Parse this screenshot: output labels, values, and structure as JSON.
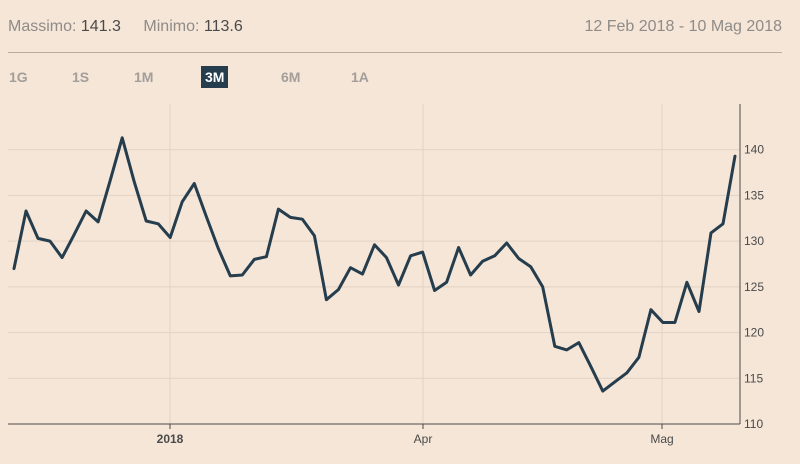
{
  "header": {
    "max_label": "Massimo:",
    "max_value": "141.3",
    "min_label": "Minimo:",
    "min_value": "113.6",
    "date_range": "12 Feb 2018 - 10 Mag 2018"
  },
  "tabs": [
    {
      "label": "1G",
      "active": false
    },
    {
      "label": "1S",
      "active": false
    },
    {
      "label": "1M",
      "active": false
    },
    {
      "label": "3M",
      "active": true
    },
    {
      "label": "6M",
      "active": false
    },
    {
      "label": "1A",
      "active": false
    }
  ],
  "colors": {
    "background": "#f5e6d8",
    "line": "#253d4d",
    "grid": "#e3d2c4",
    "active_tab": "#253d4d"
  },
  "chart_data": {
    "type": "line",
    "ylim": [
      110,
      145
    ],
    "y_ticks": [
      110,
      115,
      120,
      125,
      130,
      135,
      140
    ],
    "x_ticks": [
      {
        "label": "2018",
        "bold": true
      },
      {
        "label": "Apr",
        "bold": false
      },
      {
        "label": "Mag",
        "bold": false
      }
    ],
    "grid": true,
    "values": [
      127.0,
      133.3,
      130.3,
      130.0,
      128.2,
      130.7,
      133.3,
      132.1,
      136.6,
      141.3,
      136.5,
      132.2,
      131.9,
      130.4,
      134.3,
      136.3,
      132.7,
      129.2,
      126.2,
      126.3,
      128.0,
      128.3,
      133.5,
      132.6,
      132.4,
      130.6,
      123.6,
      124.7,
      127.1,
      126.4,
      129.6,
      128.2,
      125.2,
      128.4,
      128.8,
      124.6,
      125.5,
      129.3,
      126.3,
      127.8,
      128.4,
      129.8,
      128.1,
      127.2,
      125.0,
      118.5,
      118.1,
      118.9,
      116.3,
      113.6,
      114.6,
      115.6,
      117.3,
      122.5,
      121.1,
      121.1,
      125.5,
      122.3,
      130.9,
      131.9,
      139.3
    ]
  }
}
